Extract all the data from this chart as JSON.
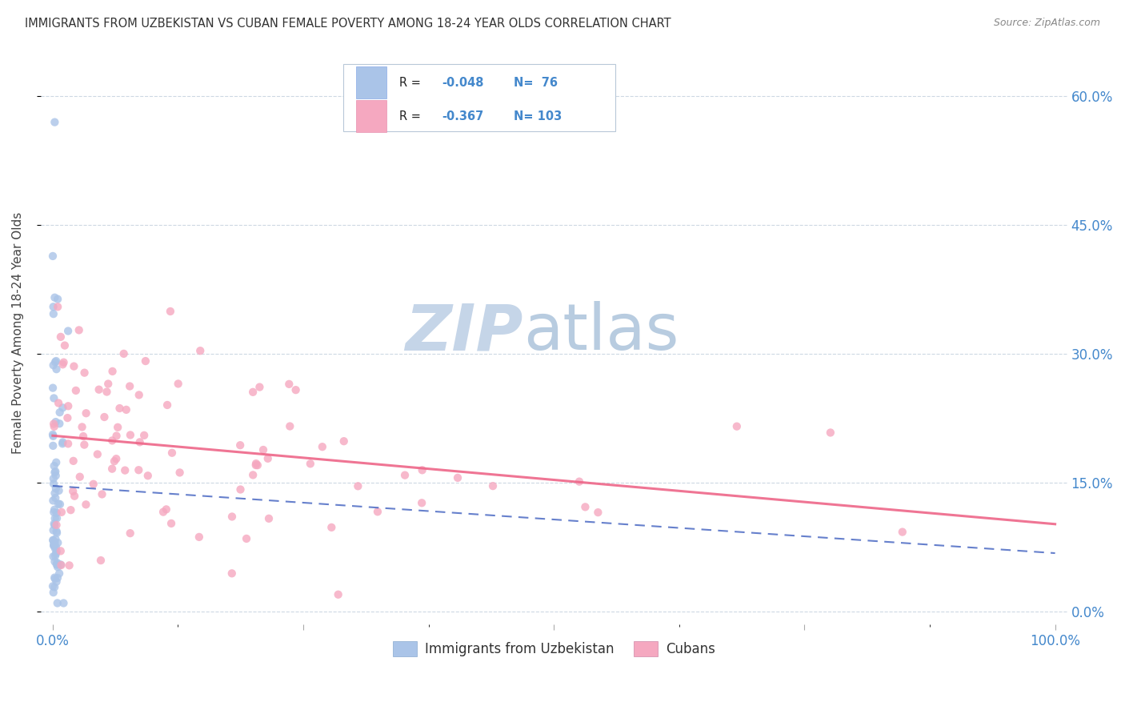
{
  "title": "IMMIGRANTS FROM UZBEKISTAN VS CUBAN FEMALE POVERTY AMONG 18-24 YEAR OLDS CORRELATION CHART",
  "source": "Source: ZipAtlas.com",
  "ylabel": "Female Poverty Among 18-24 Year Olds",
  "yticks_labels": [
    "0.0%",
    "15.0%",
    "30.0%",
    "45.0%",
    "60.0%"
  ],
  "ytick_vals": [
    0.0,
    0.15,
    0.3,
    0.45,
    0.6
  ],
  "legend_label_1": "Immigrants from Uzbekistan",
  "legend_label_2": "Cubans",
  "r1": -0.048,
  "n1": 76,
  "r2": -0.367,
  "n2": 103,
  "color1": "#aac4e8",
  "color2": "#f5a8c0",
  "line1_color": "#3355bb",
  "line2_color": "#ee6688",
  "watermark_zip": "ZIP",
  "watermark_atlas": "atlas",
  "watermark_color_zip": "#c5d5e8",
  "watermark_color_atlas": "#b8cce0",
  "background_color": "#ffffff",
  "grid_color": "#c8d4e0",
  "title_color": "#333333",
  "axis_label_color": "#4488cc",
  "uzbek_seed": 12345,
  "cuban_seed": 67890,
  "xlim": [
    0.0,
    1.0
  ],
  "ylim": [
    0.0,
    0.65
  ]
}
